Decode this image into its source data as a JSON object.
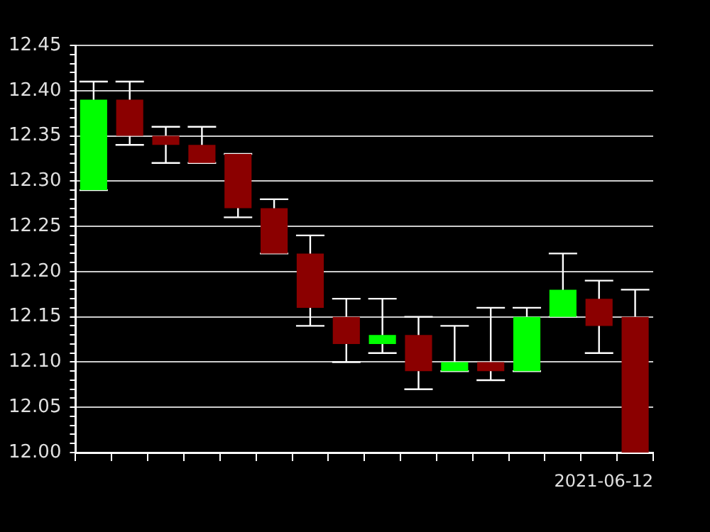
{
  "chart_data": {
    "type": "candlestick",
    "categories": [
      null,
      null,
      null,
      null,
      null,
      null,
      null,
      null,
      null,
      null,
      null,
      null,
      null,
      null,
      null,
      null
    ],
    "ohlc": [
      [
        12.29,
        12.41,
        12.29,
        12.39
      ],
      [
        12.39,
        12.41,
        12.34,
        12.35
      ],
      [
        12.35,
        12.36,
        12.32,
        12.34
      ],
      [
        12.34,
        12.36,
        12.32,
        12.32
      ],
      [
        12.33,
        12.33,
        12.26,
        12.27
      ],
      [
        12.27,
        12.28,
        12.22,
        12.22
      ],
      [
        12.22,
        12.24,
        12.14,
        12.16
      ],
      [
        12.15,
        12.17,
        12.1,
        12.12
      ],
      [
        12.12,
        12.17,
        12.11,
        12.13
      ],
      [
        12.13,
        12.15,
        12.07,
        12.09
      ],
      [
        12.09,
        12.14,
        12.09,
        12.1
      ],
      [
        12.1,
        12.16,
        12.08,
        12.09
      ],
      [
        12.09,
        12.16,
        12.09,
        12.15
      ],
      [
        12.15,
        12.22,
        12.15,
        12.18
      ],
      [
        12.17,
        12.19,
        12.11,
        12.14
      ],
      [
        12.15,
        12.18,
        12.0,
        12.0
      ]
    ],
    "colors": [
      "#00ff00",
      "#8b0000",
      "#8b0000",
      "#8b0000",
      "#8b0000",
      "#8b0000",
      "#8b0000",
      "#8b0000",
      "#00ff00",
      "#8b0000",
      "#00ff00",
      "#8b0000",
      "#00ff00",
      "#00ff00",
      "#8b0000",
      "#8b0000"
    ],
    "ylim": [
      12.0,
      12.45
    ],
    "yticks": [
      {
        "value": 12.0,
        "label": "12.00"
      },
      {
        "value": 12.01,
        "label": null
      },
      {
        "value": 12.02,
        "label": null
      },
      {
        "value": 12.03,
        "label": null
      },
      {
        "value": 12.04,
        "label": null
      },
      {
        "value": 12.05,
        "label": "12.05"
      },
      {
        "value": 12.06,
        "label": null
      },
      {
        "value": 12.07,
        "label": null
      },
      {
        "value": 12.08,
        "label": null
      },
      {
        "value": 12.09,
        "label": null
      },
      {
        "value": 12.1,
        "label": "12.10"
      },
      {
        "value": 12.11,
        "label": null
      },
      {
        "value": 12.12,
        "label": null
      },
      {
        "value": 12.13,
        "label": null
      },
      {
        "value": 12.14,
        "label": null
      },
      {
        "value": 12.15,
        "label": "12.15"
      },
      {
        "value": 12.16,
        "label": null
      },
      {
        "value": 12.17,
        "label": null
      },
      {
        "value": 12.18,
        "label": null
      },
      {
        "value": 12.19,
        "label": null
      },
      {
        "value": 12.2,
        "label": "12.20"
      },
      {
        "value": 12.21,
        "label": null
      },
      {
        "value": 12.22,
        "label": null
      },
      {
        "value": 12.23,
        "label": null
      },
      {
        "value": 12.24,
        "label": null
      },
      {
        "value": 12.25,
        "label": "12.25"
      },
      {
        "value": 12.26,
        "label": null
      },
      {
        "value": 12.27,
        "label": null
      },
      {
        "value": 12.28,
        "label": null
      },
      {
        "value": 12.29,
        "label": null
      },
      {
        "value": 12.3,
        "label": "12.30"
      },
      {
        "value": 12.31,
        "label": null
      },
      {
        "value": 12.32,
        "label": null
      },
      {
        "value": 12.33,
        "label": null
      },
      {
        "value": 12.34,
        "label": null
      },
      {
        "value": 12.35,
        "label": "12.35"
      },
      {
        "value": 12.36,
        "label": null
      },
      {
        "value": 12.37,
        "label": null
      },
      {
        "value": 12.38,
        "label": null
      },
      {
        "value": 12.39,
        "label": null
      },
      {
        "value": 12.4,
        "label": "12.40"
      },
      {
        "value": 12.41,
        "label": null
      },
      {
        "value": 12.42,
        "label": null
      },
      {
        "value": 12.43,
        "label": null
      },
      {
        "value": 12.44,
        "label": null
      },
      {
        "value": 12.45,
        "label": "12.45"
      }
    ],
    "grid": "y",
    "tick_labels": "y",
    "annotations": [
      "2021-06-12"
    ]
  }
}
